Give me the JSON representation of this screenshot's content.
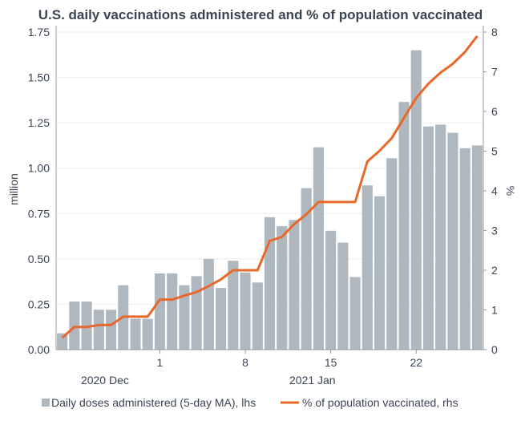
{
  "chart_data": {
    "type": "bar+line",
    "title": "U.S. daily vaccinations administered and % of population vaccinated",
    "ylabel_left": "million",
    "ylabel_right": "%",
    "ylim_left": [
      0,
      1.75
    ],
    "ylim_right": [
      0,
      8
    ],
    "yticks_left": [
      "0.00",
      "0.25",
      "0.50",
      "0.75",
      "1.00",
      "1.25",
      "1.50",
      "1.75"
    ],
    "yticks_right": [
      "0",
      "1",
      "2",
      "3",
      "4",
      "5",
      "6",
      "7",
      "8"
    ],
    "x_tick_labels": [
      {
        "day_index": 8,
        "label": "1"
      },
      {
        "day_index": 15,
        "label": "8"
      },
      {
        "day_index": 22,
        "label": "15"
      },
      {
        "day_index": 29,
        "label": "22"
      }
    ],
    "x_group_labels": [
      {
        "label": "2020 Dec",
        "day_index": 3.5
      },
      {
        "label": "2021 Jan",
        "day_index": 20.5
      }
    ],
    "colors": {
      "bars": "#b0b8bf",
      "line": "#e8672a",
      "text": "#3a4452",
      "grid": "#eeeeee",
      "axis": "#999999"
    },
    "series": [
      {
        "name": "Daily doses administered (5-day MA), lhs",
        "kind": "bar",
        "axis": "left",
        "values": [
          0.09,
          0.265,
          0.265,
          0.22,
          0.22,
          0.355,
          0.17,
          0.17,
          0.42,
          0.42,
          0.355,
          0.405,
          0.5,
          0.34,
          0.49,
          0.425,
          0.37,
          0.73,
          0.68,
          0.715,
          0.89,
          1.115,
          0.655,
          0.59,
          0.4,
          0.905,
          0.845,
          1.055,
          1.365,
          1.65,
          1.23,
          1.24,
          1.195,
          1.11,
          1.125
        ]
      },
      {
        "name": "% of population vaccinated, rhs",
        "kind": "line",
        "axis": "right",
        "values": [
          0.3,
          0.57,
          0.57,
          0.62,
          0.62,
          0.83,
          0.83,
          0.83,
          1.26,
          1.26,
          1.36,
          1.45,
          1.6,
          1.77,
          2.0,
          2.0,
          2.0,
          2.74,
          2.84,
          3.16,
          3.41,
          3.72,
          3.72,
          3.72,
          3.72,
          4.74,
          5.01,
          5.33,
          5.84,
          6.34,
          6.7,
          6.98,
          7.2,
          7.5,
          7.9
        ]
      }
    ],
    "legend": {
      "position": "bottom",
      "items": [
        {
          "label": "Daily doses administered (5-day MA), lhs",
          "symbol": "square"
        },
        {
          "label": "% of population vaccinated, rhs",
          "symbol": "line"
        }
      ]
    }
  }
}
